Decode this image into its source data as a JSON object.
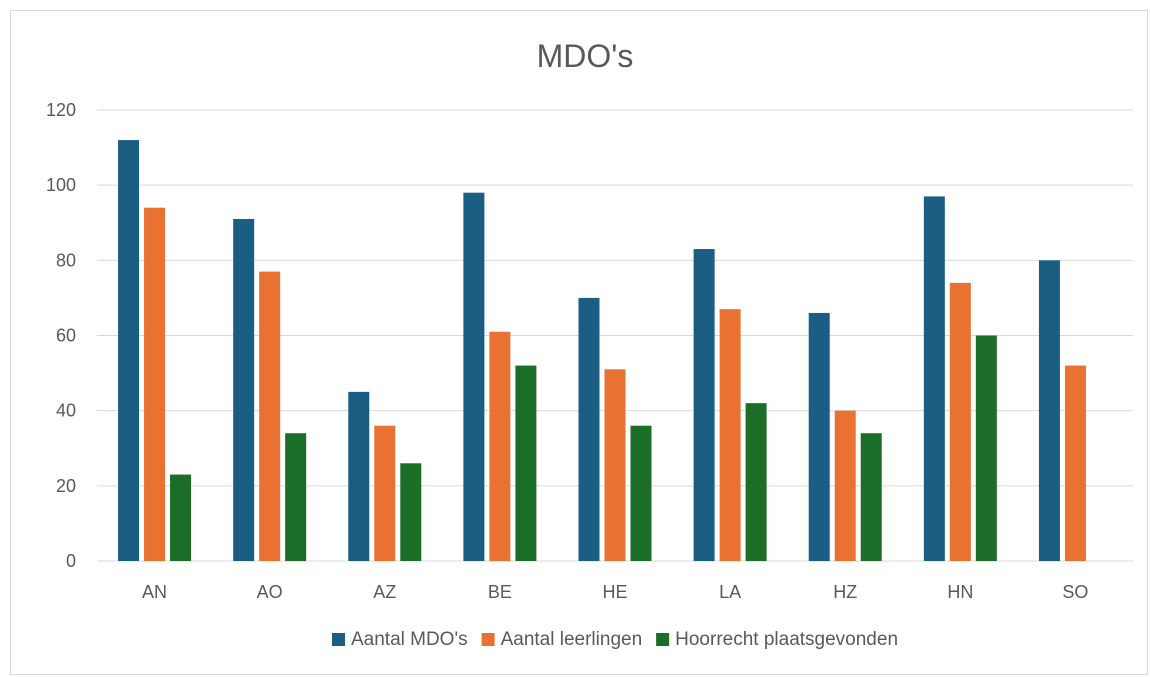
{
  "chart_data": {
    "type": "bar",
    "title": "MDO's",
    "xlabel": "",
    "ylabel": "",
    "categories": [
      "AN",
      "AO",
      "AZ",
      "BE",
      "HE",
      "LA",
      "HZ",
      "HN",
      "SO"
    ],
    "series": [
      {
        "name": "Aantal MDO's",
        "color": "#1a5e84",
        "values": [
          112,
          91,
          45,
          98,
          70,
          83,
          66,
          97,
          80
        ]
      },
      {
        "name": "Aantal leerlingen",
        "color": "#e97132",
        "values": [
          94,
          77,
          36,
          61,
          51,
          67,
          40,
          74,
          52
        ]
      },
      {
        "name": "Hoorrecht plaatsgevonden",
        "color": "#1b6d27",
        "values": [
          23,
          34,
          26,
          52,
          36,
          42,
          34,
          60,
          null
        ]
      }
    ],
    "ylim": [
      0,
      120
    ],
    "yticks": [
      0,
      20,
      40,
      60,
      80,
      100,
      120
    ],
    "grid": true,
    "legend": "bottom"
  }
}
